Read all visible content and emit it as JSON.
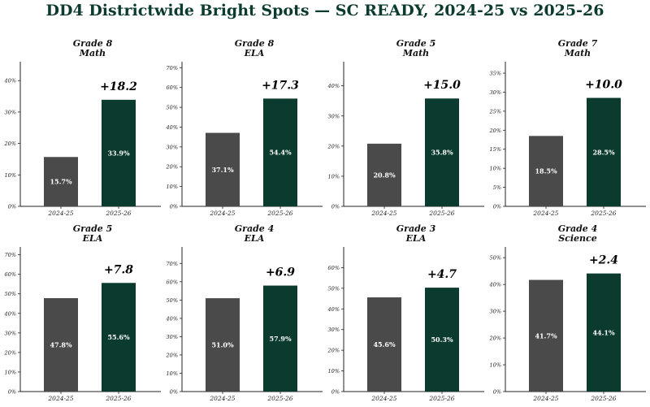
{
  "title": "DD4 Districtwide Bright Spots — SC READY, 2024-25 vs 2025-26",
  "colors": {
    "prior": "#4a4a4a",
    "current": "#0b3a2e",
    "title": "#0b3a2e"
  },
  "chart_data": [
    {
      "type": "bar",
      "title": [
        "Grade 8",
        "Math"
      ],
      "categories": [
        "2024-25",
        "2025-26"
      ],
      "values": [
        15.7,
        33.9
      ],
      "labels": [
        "15.7%",
        "33.9%"
      ],
      "delta_label": "+18.2",
      "ylim": [
        0,
        46
      ],
      "yticks": [
        0,
        10,
        20,
        30,
        40
      ],
      "tick_labels": [
        "0%",
        "10%",
        "20%",
        "30%",
        "40%"
      ]
    },
    {
      "type": "bar",
      "title": [
        "Grade 8",
        "ELA"
      ],
      "categories": [
        "2024-25",
        "2025-26"
      ],
      "values": [
        37.1,
        54.4
      ],
      "labels": [
        "37.1%",
        "54.4%"
      ],
      "delta_label": "+17.3",
      "ylim": [
        0,
        73
      ],
      "yticks": [
        0,
        10,
        20,
        30,
        40,
        50,
        60,
        70
      ],
      "tick_labels": [
        "0%",
        "10%",
        "20%",
        "30%",
        "40%",
        "50%",
        "60%",
        "70%"
      ]
    },
    {
      "type": "bar",
      "title": [
        "Grade 5",
        "Math"
      ],
      "categories": [
        "2024-25",
        "2025-26"
      ],
      "values": [
        20.8,
        35.8
      ],
      "labels": [
        "20.8%",
        "35.8%"
      ],
      "delta_label": "+15.0",
      "ylim": [
        0,
        48
      ],
      "yticks": [
        0,
        10,
        20,
        30,
        40
      ],
      "tick_labels": [
        "0%",
        "10%",
        "20%",
        "30%",
        "40%"
      ]
    },
    {
      "type": "bar",
      "title": [
        "Grade 7",
        "Math"
      ],
      "categories": [
        "2024-25",
        "2025-26"
      ],
      "values": [
        18.5,
        28.5
      ],
      "labels": [
        "18.5%",
        "28.5%"
      ],
      "delta_label": "+10.0",
      "ylim": [
        0,
        38
      ],
      "yticks": [
        0,
        5,
        10,
        15,
        20,
        25,
        30,
        35
      ],
      "tick_labels": [
        "0%",
        "5%",
        "10%",
        "15%",
        "20%",
        "25%",
        "30%",
        "35%"
      ]
    },
    {
      "type": "bar",
      "title": [
        "Grade 5",
        "ELA"
      ],
      "categories": [
        "2024-25",
        "2025-26"
      ],
      "values": [
        47.8,
        55.6
      ],
      "labels": [
        "47.8%",
        "55.6%"
      ],
      "delta_label": "+7.8",
      "ylim": [
        0,
        74
      ],
      "yticks": [
        0,
        10,
        20,
        30,
        40,
        50,
        60,
        70
      ],
      "tick_labels": [
        "0%",
        "10%",
        "20%",
        "30%",
        "40%",
        "50%",
        "60%",
        "70%"
      ]
    },
    {
      "type": "bar",
      "title": [
        "Grade 4",
        "ELA"
      ],
      "categories": [
        "2024-25",
        "2025-26"
      ],
      "values": [
        51.0,
        57.9
      ],
      "labels": [
        "51.0%",
        "57.9%"
      ],
      "delta_label": "+6.9",
      "ylim": [
        0,
        79
      ],
      "yticks": [
        0,
        10,
        20,
        30,
        40,
        50,
        60,
        70
      ],
      "tick_labels": [
        "0%",
        "10%",
        "20%",
        "30%",
        "40%",
        "50%",
        "60%",
        "70%"
      ]
    },
    {
      "type": "bar",
      "title": [
        "Grade 3",
        "ELA"
      ],
      "categories": [
        "2024-25",
        "2025-26"
      ],
      "values": [
        45.6,
        50.3
      ],
      "labels": [
        "45.6%",
        "50.3%"
      ],
      "delta_label": "+4.7",
      "ylim": [
        0,
        70
      ],
      "yticks": [
        0,
        10,
        20,
        30,
        40,
        50,
        60
      ],
      "tick_labels": [
        "0%",
        "10%",
        "20%",
        "30%",
        "40%",
        "50%",
        "60%"
      ]
    },
    {
      "type": "bar",
      "title": [
        "Grade 4",
        "Science"
      ],
      "categories": [
        "2024-25",
        "2025-26"
      ],
      "values": [
        41.7,
        44.1
      ],
      "labels": [
        "41.7%",
        "44.1%"
      ],
      "delta_label": "+2.4",
      "ylim": [
        0,
        54
      ],
      "yticks": [
        0,
        10,
        20,
        30,
        40,
        50
      ],
      "tick_labels": [
        "0%",
        "10%",
        "20%",
        "30%",
        "40%",
        "50%"
      ]
    }
  ]
}
